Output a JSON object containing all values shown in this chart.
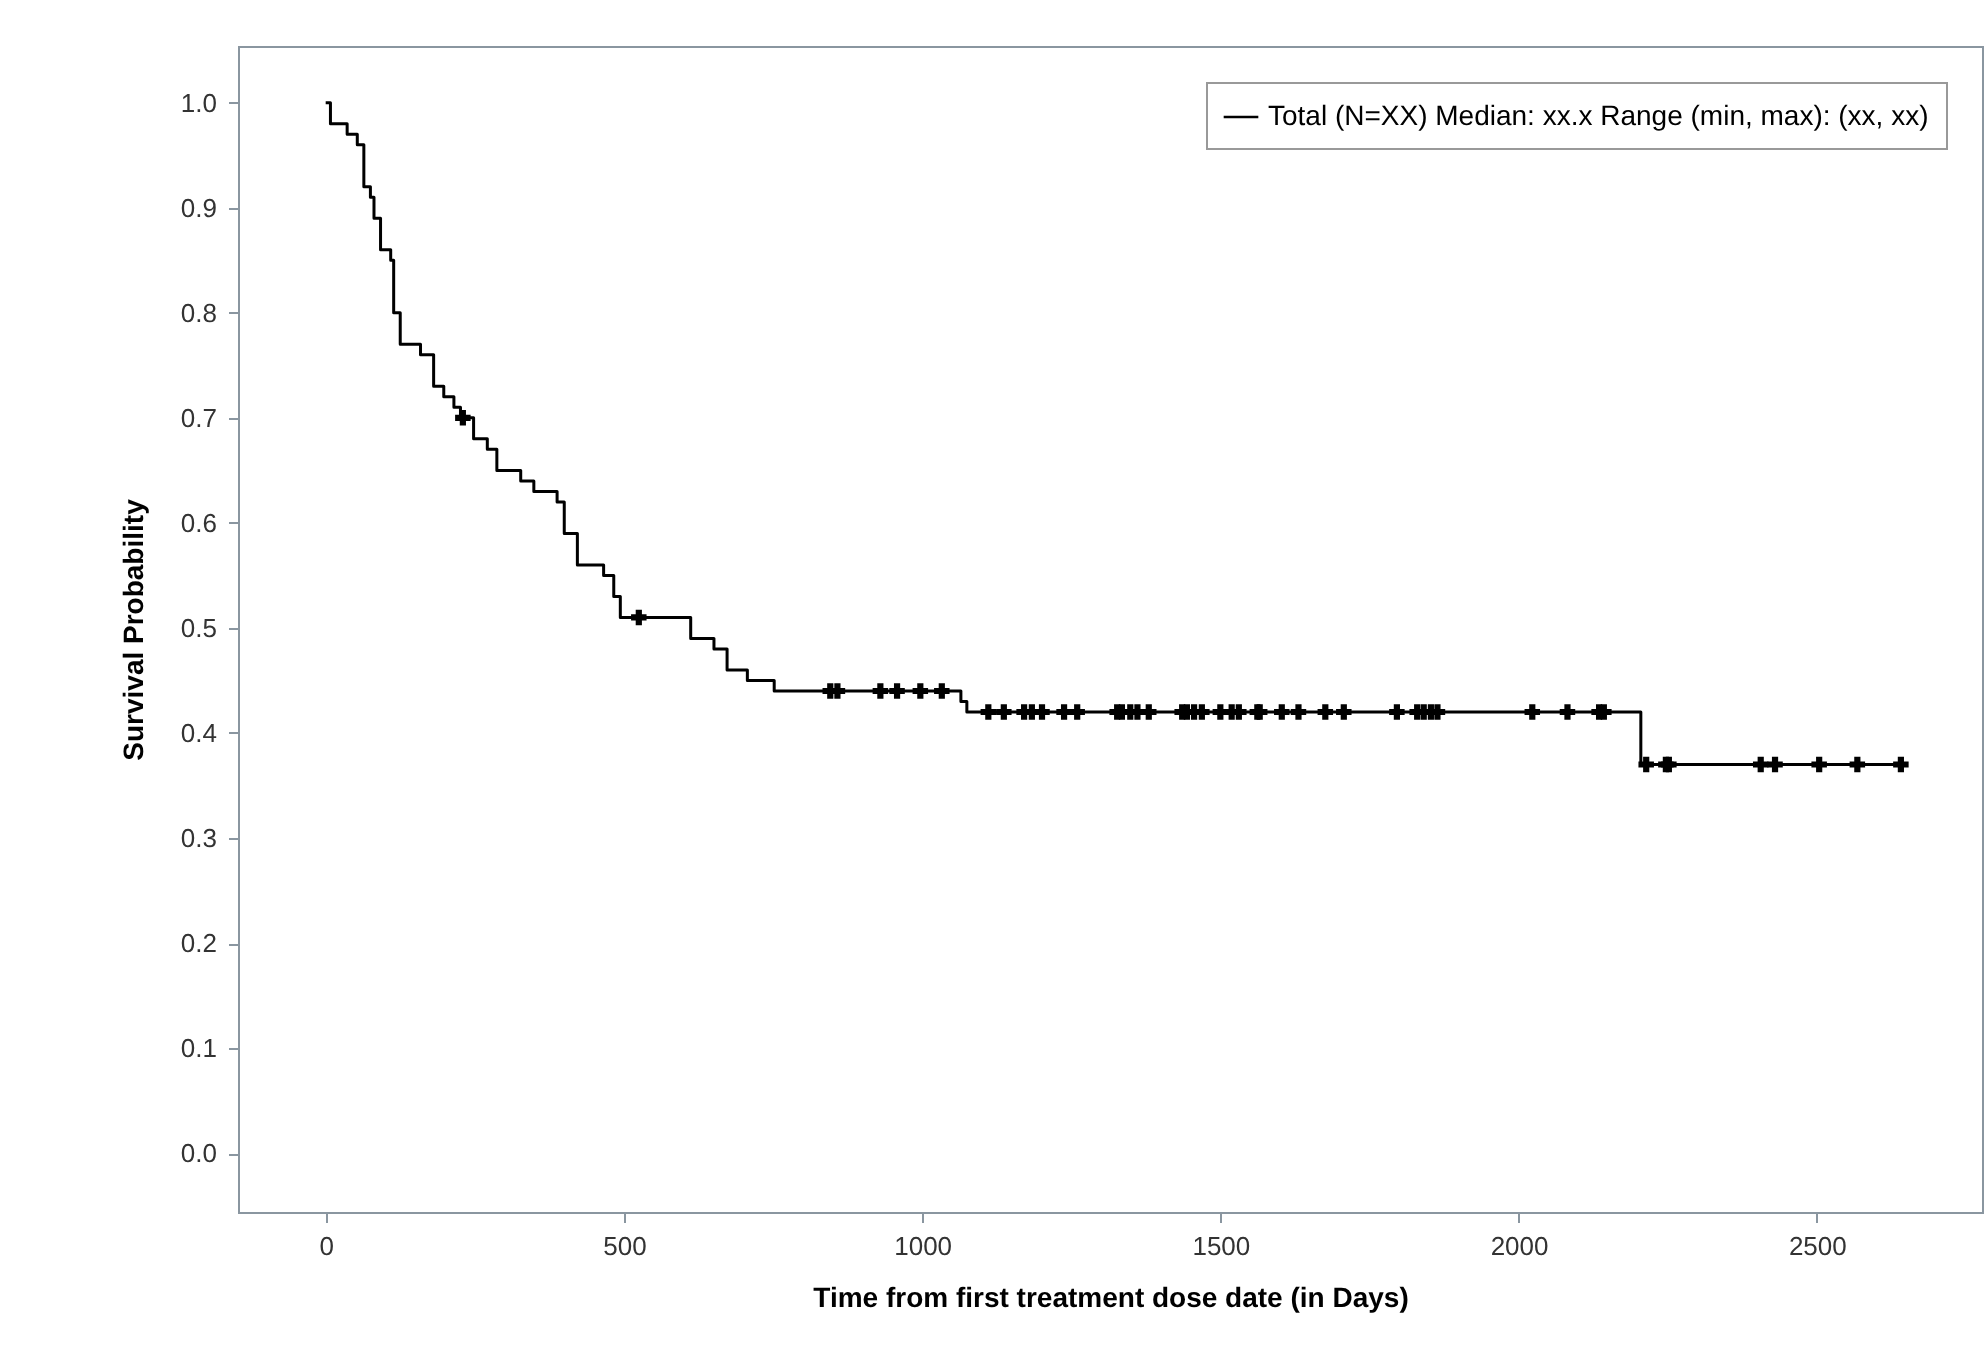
{
  "chart_data": {
    "type": "step",
    "xlabel": "Time from first treatment dose date (in Days)",
    "ylabel": "Survival Probability",
    "xlim": [
      -147,
      2777
    ],
    "ylim": [
      -0.056,
      1.054
    ],
    "xticks": [
      0,
      500,
      1000,
      1500,
      2000,
      2500
    ],
    "yticks": [
      {
        "value": 0,
        "label": "0.0"
      },
      0.1,
      0.2,
      0.3,
      0.4,
      0.5,
      0.6,
      0.7,
      0.8,
      0.9,
      {
        "value": 1,
        "label": "1.0"
      }
    ],
    "grid": false,
    "legend": "top right",
    "series": [
      {
        "name": "Total (N=XX) Median: xx.x Range (min, max): (xx, xx)",
        "color": "#000000",
        "x": [
          0,
          8,
          36,
          53,
          64,
          75,
          81,
          92,
          109,
          114,
          125,
          159,
          181,
          198,
          215,
          226,
          248,
          271,
          287,
          327,
          349,
          388,
          400,
          422,
          466,
          483,
          494,
          612,
          651,
          673,
          707,
          752,
          1065,
          1075,
          2205,
          2652
        ],
        "values": [
          1.0,
          0.98,
          0.97,
          0.96,
          0.92,
          0.91,
          0.89,
          0.86,
          0.85,
          0.8,
          0.77,
          0.76,
          0.73,
          0.72,
          0.71,
          0.7,
          0.68,
          0.67,
          0.65,
          0.64,
          0.63,
          0.62,
          0.59,
          0.56,
          0.55,
          0.53,
          0.51,
          0.49,
          0.48,
          0.46,
          0.45,
          0.44,
          0.43,
          0.42,
          0.37,
          0.37
        ]
      },
      {
        "type": "scatter",
        "marker": "cross",
        "color": "#000000",
        "x": [
          230,
          525,
          846,
          858,
          930,
          958,
          997,
          1033,
          1111,
          1137,
          1171,
          1184,
          1201,
          1238,
          1260,
          1327,
          1335,
          1349,
          1361,
          1380,
          1436,
          1444,
          1456,
          1469,
          1500,
          1519,
          1531,
          1562,
          1566,
          1603,
          1631,
          1676,
          1707,
          1796,
          1830,
          1841,
          1853,
          1864,
          2023,
          2082,
          2135,
          2143,
          2214,
          2247,
          2252,
          2406,
          2430,
          2504,
          2568,
          2641
        ],
        "values": [
          0.7,
          0.51,
          0.44,
          0.44,
          0.44,
          0.44,
          0.44,
          0.44,
          0.42,
          0.42,
          0.42,
          0.42,
          0.42,
          0.42,
          0.42,
          0.42,
          0.42,
          0.42,
          0.42,
          0.42,
          0.42,
          0.42,
          0.42,
          0.42,
          0.42,
          0.42,
          0.42,
          0.42,
          0.42,
          0.42,
          0.42,
          0.42,
          0.42,
          0.42,
          0.42,
          0.42,
          0.42,
          0.42,
          0.42,
          0.42,
          0.42,
          0.42,
          0.37,
          0.37,
          0.37,
          0.37,
          0.37,
          0.37,
          0.37,
          0.37
        ]
      }
    ]
  }
}
